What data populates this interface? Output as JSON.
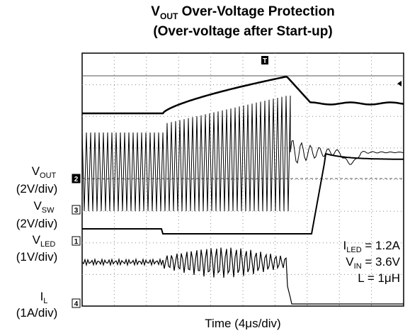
{
  "title": {
    "line1": {
      "main": "V",
      "sub": "OUT",
      "rest": " Over-Voltage Protection"
    },
    "line2": "(Over-voltage after Start-up)"
  },
  "channels": [
    {
      "marker": "2",
      "name": {
        "main": "V",
        "sub": "OUT"
      },
      "scale": "(2V/div)"
    },
    {
      "marker": "3",
      "name": {
        "main": "V",
        "sub": "SW"
      },
      "scale": "(2V/div)"
    },
    {
      "marker": "1",
      "name": {
        "main": "V",
        "sub": "LED"
      },
      "scale": "(1V/div)"
    },
    {
      "marker": "4",
      "name": {
        "main": "I",
        "sub": "L"
      },
      "scale": "(1A/div)"
    }
  ],
  "trigger": "T",
  "conditions": [
    {
      "main": "I",
      "sub": "LED",
      "rest": " = 1.2A"
    },
    {
      "main": "V",
      "sub": "IN",
      "rest": " = 3.6V"
    },
    {
      "main": "L = 1μH",
      "sub": "",
      "rest": ""
    }
  ],
  "time_label": "Time (4μs/div)"
}
